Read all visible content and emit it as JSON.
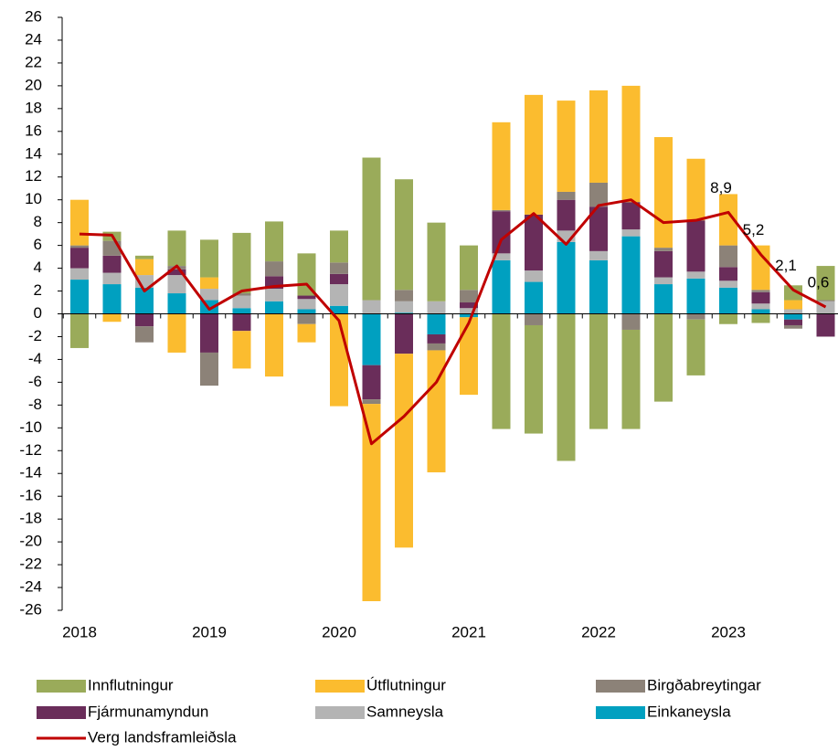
{
  "chart_data": {
    "type": "bar",
    "categories": [
      "2018",
      null,
      null,
      null,
      "2019",
      null,
      null,
      null,
      "2020",
      null,
      null,
      null,
      "2021",
      null,
      null,
      null,
      "2022",
      null,
      null,
      null,
      "2023",
      null,
      null,
      null
    ],
    "series": [
      {
        "name": "Einkaneysla",
        "color": "#00a0c0",
        "values": [
          3.0,
          2.6,
          2.3,
          1.8,
          1.2,
          0.5,
          1.1,
          0.4,
          0.7,
          -4.5,
          0.1,
          -1.8,
          -0.3,
          4.7,
          2.8,
          6.3,
          4.7,
          6.8,
          2.6,
          3.1,
          2.3,
          0.4,
          -0.5,
          0.0
        ]
      },
      {
        "name": "Samneysla",
        "color": "#b4b4b4",
        "values": [
          1.0,
          1.0,
          1.1,
          1.6,
          1.0,
          1.1,
          1.1,
          0.9,
          1.9,
          1.2,
          1.0,
          1.1,
          0.5,
          0.6,
          1.0,
          1.0,
          0.8,
          0.6,
          0.6,
          0.6,
          0.6,
          0.5,
          0.4,
          1.1
        ]
      },
      {
        "name": "Fjármunamyndun",
        "color": "#6a2d5a",
        "values": [
          1.8,
          1.5,
          -1.1,
          0.5,
          -3.4,
          -1.5,
          1.1,
          0.3,
          0.9,
          -3.0,
          -3.5,
          -0.8,
          0.5,
          3.7,
          4.9,
          2.7,
          3.9,
          2.4,
          2.3,
          4.5,
          1.2,
          1.0,
          -0.5,
          -2.0
        ]
      },
      {
        "name": "Birgðabreytingar",
        "color": "#8c8278",
        "values": [
          0.2,
          1.3,
          -1.4,
          0.3,
          -2.9,
          0.2,
          1.3,
          -0.9,
          1.0,
          -0.4,
          1.0,
          -0.6,
          1.1,
          0.1,
          -1.0,
          0.7,
          2.1,
          -1.4,
          0.3,
          -0.5,
          1.9,
          0.2,
          -0.3,
          0.1
        ]
      },
      {
        "name": "Útflutningur",
        "color": "#fbbc2f",
        "values": [
          4.0,
          -0.7,
          1.4,
          -3.4,
          1.0,
          -3.3,
          -5.5,
          -1.6,
          -8.1,
          -17.3,
          -17.0,
          -10.7,
          -6.8,
          7.7,
          10.5,
          8.0,
          8.1,
          10.2,
          9.7,
          5.4,
          4.5,
          3.9,
          0.8,
          0.0
        ]
      },
      {
        "name": "Innflutningur",
        "color": "#9aab5a",
        "values": [
          -3.0,
          0.8,
          0.3,
          3.1,
          3.3,
          5.3,
          3.5,
          3.7,
          2.8,
          12.5,
          9.7,
          6.9,
          3.9,
          -10.1,
          -9.5,
          -12.9,
          -10.1,
          -8.7,
          -7.7,
          -4.9,
          -0.9,
          -0.8,
          1.3,
          3.0
        ]
      }
    ],
    "line": {
      "name": "Verg landsframleiðsla",
      "color": "#c00000",
      "values": [
        7.0,
        6.9,
        2.0,
        4.2,
        0.4,
        2.0,
        2.4,
        2.6,
        -0.6,
        -11.4,
        -9.0,
        -6.0,
        -0.8,
        6.5,
        8.8,
        6.1,
        9.5,
        10.0,
        8.0,
        8.2,
        8.9,
        5.2,
        2.1,
        0.6
      ],
      "value_labels": [
        null,
        null,
        null,
        null,
        null,
        null,
        null,
        null,
        null,
        null,
        null,
        null,
        null,
        null,
        null,
        null,
        null,
        null,
        null,
        null,
        "8,9",
        "5,2",
        "2,1",
        "0,6"
      ]
    },
    "ylim": [
      -26,
      26
    ],
    "yticks": [
      -26,
      -24,
      -22,
      -20,
      -18,
      -16,
      -14,
      -12,
      -10,
      -8,
      -6,
      -4,
      -2,
      0,
      2,
      4,
      6,
      8,
      10,
      12,
      14,
      16,
      18,
      20,
      22,
      24,
      26
    ]
  }
}
